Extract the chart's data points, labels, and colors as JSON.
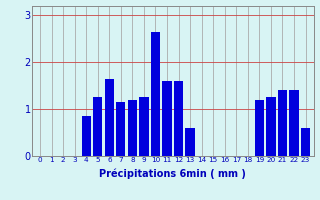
{
  "categories": [
    0,
    1,
    2,
    3,
    4,
    5,
    6,
    7,
    8,
    9,
    10,
    11,
    12,
    13,
    14,
    15,
    16,
    17,
    18,
    19,
    20,
    21,
    22,
    23
  ],
  "values": [
    0,
    0,
    0,
    0,
    0.85,
    1.25,
    1.65,
    1.15,
    1.2,
    1.25,
    2.65,
    1.6,
    1.6,
    0.6,
    0,
    0,
    0,
    0,
    0,
    1.2,
    1.25,
    1.4,
    1.4,
    0.6
  ],
  "bar_color": "#0000dd",
  "bg_color": "#d8f4f4",
  "hgrid_color": "#cc4444",
  "vgrid_color": "#aaaaaa",
  "xlabel": "Précipitations 6min ( mm )",
  "xlabel_color": "#0000bb",
  "tick_color": "#0000bb",
  "yticks": [
    0,
    1,
    2,
    3
  ],
  "ylim": [
    0,
    3.2
  ],
  "figsize": [
    3.2,
    2.0
  ],
  "dpi": 100
}
